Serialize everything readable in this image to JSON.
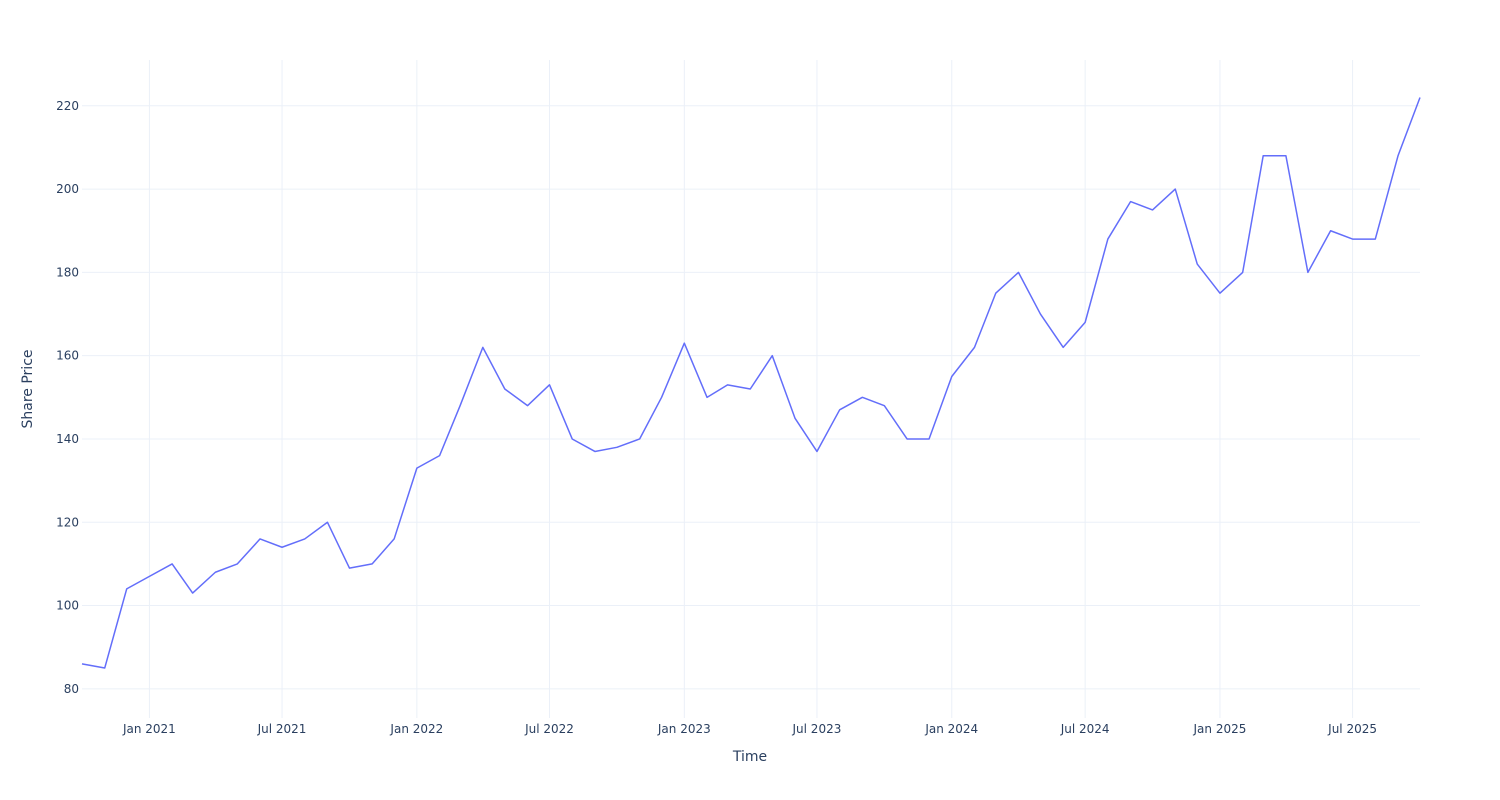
{
  "chart_data": {
    "type": "line",
    "x_label": "Time",
    "y_label": "Share Price",
    "x": [
      "2020-10",
      "2020-11",
      "2020-12",
      "2021-01",
      "2021-02",
      "2021-03",
      "2021-04",
      "2021-05",
      "2021-06",
      "2021-07",
      "2021-08",
      "2021-09",
      "2021-10",
      "2021-11",
      "2021-12",
      "2022-01",
      "2022-02",
      "2022-03",
      "2022-04",
      "2022-05",
      "2022-06",
      "2022-07",
      "2022-08",
      "2022-09",
      "2022-10",
      "2022-11",
      "2022-12",
      "2023-01",
      "2023-02",
      "2023-03",
      "2023-04",
      "2023-05",
      "2023-06",
      "2023-07",
      "2023-08",
      "2023-09",
      "2023-10",
      "2023-11",
      "2023-12",
      "2024-01",
      "2024-02",
      "2024-03",
      "2024-04",
      "2024-05",
      "2024-06",
      "2024-07",
      "2024-08",
      "2024-09",
      "2024-10",
      "2024-11",
      "2024-12",
      "2025-01",
      "2025-02",
      "2025-03",
      "2025-04",
      "2025-05",
      "2025-06",
      "2025-07",
      "2025-08",
      "2025-09",
      "2025-10"
    ],
    "series": [
      {
        "name": "Share Price",
        "color": "#636efa",
        "values": [
          86,
          85,
          104,
          107,
          110,
          103,
          108,
          110,
          116,
          114,
          116,
          120,
          109,
          110,
          116,
          133,
          136,
          148,
          162,
          152,
          148,
          153,
          140,
          137,
          138,
          140,
          150,
          163,
          150,
          153,
          152,
          160,
          145,
          137,
          147,
          150,
          148,
          140,
          140,
          155,
          162,
          175,
          180,
          170,
          162,
          168,
          188,
          197,
          195,
          200,
          182,
          175,
          180,
          208,
          208,
          180,
          190,
          188,
          188,
          208,
          222
        ]
      }
    ],
    "xlim": [
      "2020-10",
      "2025-10"
    ],
    "xticks": [
      {
        "value": "2021-01",
        "label": "Jan 2021"
      },
      {
        "value": "2021-07",
        "label": "Jul 2021"
      },
      {
        "value": "2022-01",
        "label": "Jan 2022"
      },
      {
        "value": "2022-07",
        "label": "Jul 2022"
      },
      {
        "value": "2023-01",
        "label": "Jan 2023"
      },
      {
        "value": "2023-07",
        "label": "Jul 2023"
      },
      {
        "value": "2024-01",
        "label": "Jan 2024"
      },
      {
        "value": "2024-07",
        "label": "Jul 2024"
      },
      {
        "value": "2025-01",
        "label": "Jan 2025"
      },
      {
        "value": "2025-07",
        "label": "Jul 2025"
      }
    ],
    "ylim": [
      73,
      231
    ],
    "yticks": [
      80,
      100,
      120,
      140,
      160,
      180,
      200,
      220
    ],
    "grid": true
  }
}
